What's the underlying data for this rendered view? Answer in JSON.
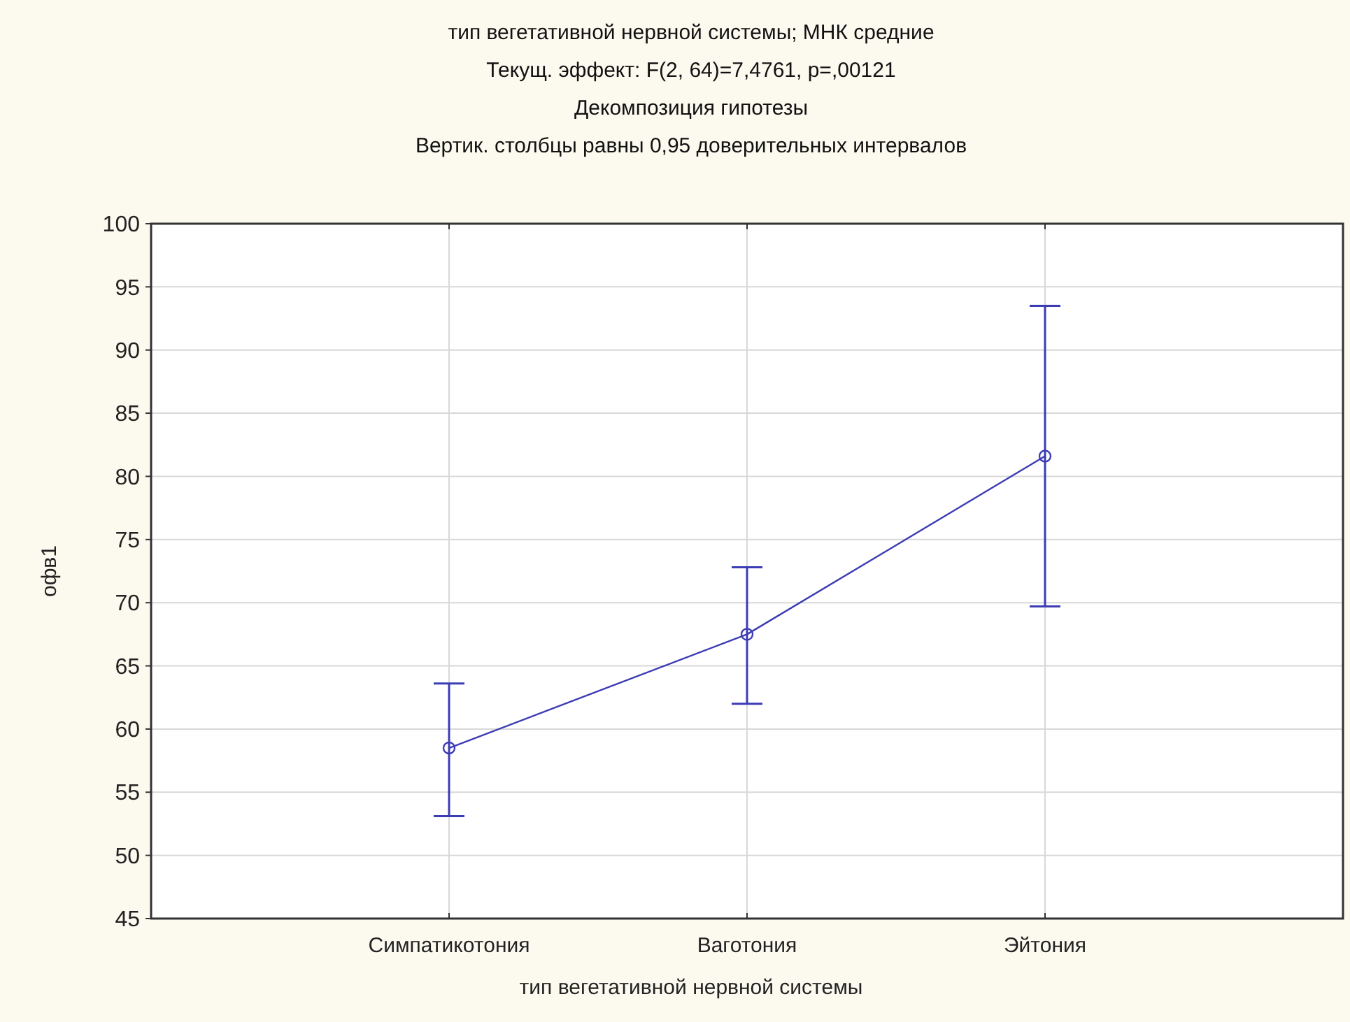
{
  "chart_data": {
    "type": "line",
    "title": "тип вегетативной нервной системы; МНК средние",
    "subtitle": "Текущ.  эффект: F(2, 64)=7,4761, p=,00121",
    "annotations": [
      "Декомпозиция гипотезы",
      "Вертик. столбцы равны 0,95 доверительных интервалов"
    ],
    "xlabel": "тип вегетативной нервной системы",
    "ylabel": "офв1",
    "categories": [
      "Симпатикотония",
      "Ваготония",
      "Эйтония"
    ],
    "series": [
      {
        "color": "#3c3cb4",
        "values": [
          58.5,
          67.5,
          81.6
        ],
        "errors": [
          [
            53.1,
            63.6
          ],
          [
            62.0,
            72.8
          ],
          [
            69.7,
            93.5
          ]
        ]
      }
    ],
    "ylim": [
      45,
      100
    ],
    "yticks": [
      45,
      50,
      55,
      60,
      65,
      70,
      75,
      80,
      85,
      90,
      95,
      100
    ],
    "grid": true,
    "marker": "circle",
    "line_style": "solid"
  }
}
